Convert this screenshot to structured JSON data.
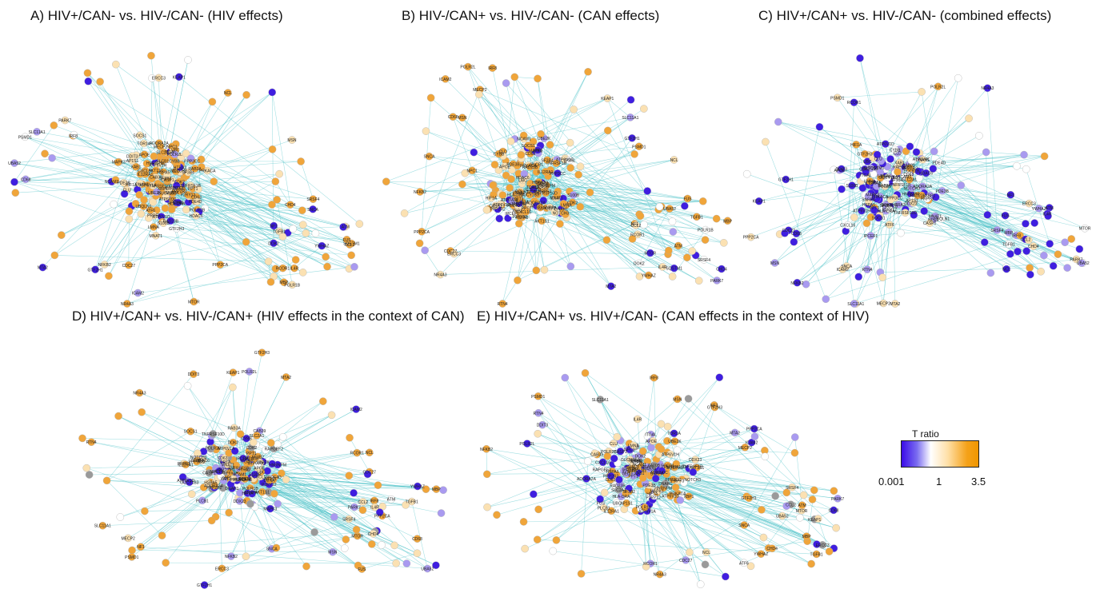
{
  "panels": [
    {
      "id": "A",
      "title": "A) HIV+/CAN- vs. HIV-/CAN- (HIV effects)",
      "mode": "orange"
    },
    {
      "id": "B",
      "title": "B) HIV-/CAN+ vs. HIV-/CAN- (CAN effects)",
      "mode": "orange"
    },
    {
      "id": "C",
      "title": "C) HIV+/CAN+ vs. HIV-/CAN- (combined effects)",
      "mode": "blue"
    },
    {
      "id": "D",
      "title": "D) HIV+/CAN+ vs. HIV-/CAN+ (HIV effects in the context of CAN)",
      "mode": "mixed"
    },
    {
      "id": "E",
      "title": "E) HIV+/CAN+ vs. HIV+/CAN- (CAN effects in the context of HIV)",
      "mode": "mixed"
    }
  ],
  "node_labels": [
    "ATP6V1A",
    "ATP6V1D",
    "ATP6V0C",
    "PDE4D",
    "CAB39",
    "UBE2K",
    "HDAC6",
    "DNAH1",
    "RAB3A",
    "PDE3B",
    "ATP6V1H",
    "XBP1",
    "GUCY1B3",
    "NPC1",
    "CLD",
    "AKT1S1",
    "PPP2R2",
    "LMNA",
    "S100B",
    "TNFRSF10D",
    "ATF6",
    "MECP2",
    "MTA2",
    "CDC27",
    "PSMD1",
    "NF1",
    "NR4A3",
    "KEAP1",
    "MTOR",
    "TGFB1",
    "ATM",
    "CHD4",
    "DOK2",
    "RAPGEF2",
    "ADORA2A",
    "HLA-DRA",
    "PRKACA",
    "NOTCH3",
    "RAD23B",
    "UBQLN1",
    "PLCB1",
    "NCAM1",
    "MAPK3",
    "CDK2",
    "MNAT1",
    "XAB1",
    "P2RY12",
    "AP1S1",
    "CXCL16",
    "IL12RA1",
    "UBC",
    "SOCS1",
    "CASP1",
    "GTF2H3",
    "POLR2L",
    "SNCA",
    "PPP2CA",
    "RCOR1",
    "NFKB2",
    "GTF2H1",
    "ERCC3",
    "PARK7",
    "MBP",
    "CCL2",
    "IL4R",
    "SQSTM1",
    "POLR2B",
    "HNRNPM",
    "TOR1A",
    "HSPA5",
    "CD63",
    "ITGAL",
    "HIF1A",
    "PPT1",
    "CLU",
    "TNFRSF1B",
    "DDX23",
    "SF3B2",
    "SF3B4",
    "PRPF3",
    "APOE",
    "CYBB",
    "PPP3CC",
    "IPCEF1",
    "SLC2A1",
    "HTRA2",
    "DDIT3",
    "RTN4",
    "MSN",
    "ICAM2",
    "SLC11A1",
    "IRF8",
    "NCL",
    "CD68",
    "UBA52",
    "YWHAZ",
    "SRSF4",
    "FUS",
    "POLR1B",
    "SNRPA"
  ],
  "legend": {
    "title": "T ratio",
    "min": "0.001",
    "mid": "1",
    "max": "3.5",
    "colors": {
      "low": "#3a0be8",
      "mid": "#ffffff",
      "high": "#ef9600"
    }
  },
  "colors": {
    "edge": "#4fc3c8",
    "orange": "#f0a53a",
    "lightOrange": "#fbe1b2",
    "blue": "#3f1ee0",
    "lavender": "#a99af0",
    "gray": "#9a9a9a",
    "white": "#ffffff"
  }
}
